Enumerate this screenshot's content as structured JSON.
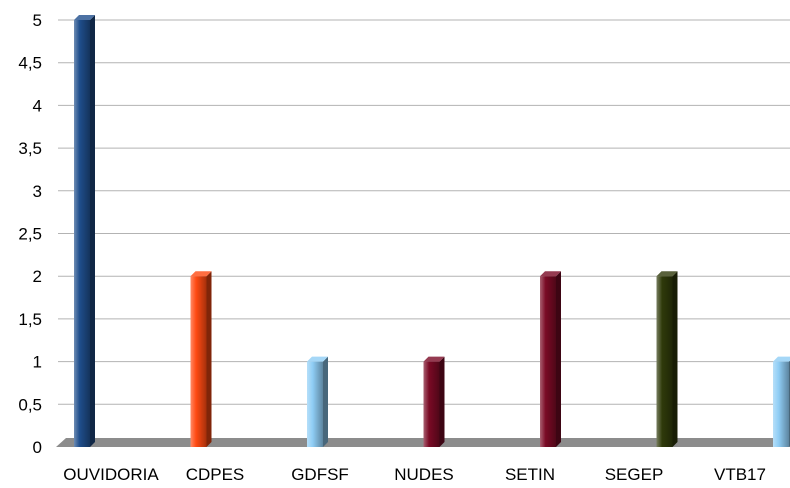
{
  "chart_data": {
    "type": "bar",
    "categories": [
      "OUVIDORIA",
      "CDPES",
      "GDFSF",
      "NUDES",
      "SETIN",
      "SEGEP",
      "VTB17"
    ],
    "values": [
      5,
      2,
      1,
      1,
      2,
      2,
      1
    ],
    "colors": [
      "#1f4e8c",
      "#ff4a12",
      "#8fcdf5",
      "#7a0a25",
      "#7a0a25",
      "#2f3a0a",
      "#8fcdf5"
    ],
    "ylim": [
      0,
      5
    ],
    "yticks": [
      "0",
      "0,5",
      "1",
      "1,5",
      "2",
      "2,5",
      "3",
      "3,5",
      "4",
      "4,5",
      "5"
    ],
    "grid": true,
    "legend": "none",
    "title": "",
    "xlabel": "",
    "ylabel": ""
  }
}
